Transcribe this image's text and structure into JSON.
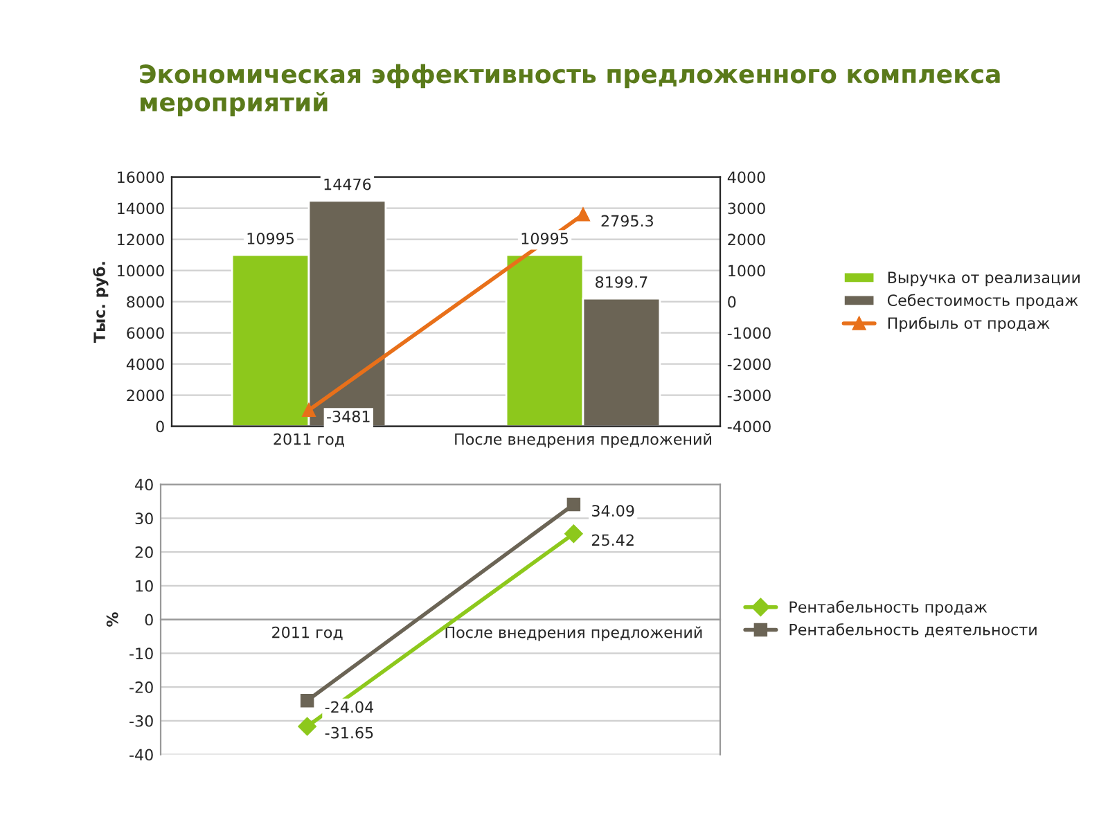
{
  "chart_data": [
    {
      "type": "bar",
      "title": "Экономическая эффективность предложенного комплекса мероприятий",
      "ylabel": "Тыс. руб.",
      "categories": [
        "2011 год",
        "После внедрения предложений"
      ],
      "series": [
        {
          "name": "Выручка от реализации",
          "color": "#8dc81c",
          "values": [
            10995,
            10995
          ]
        },
        {
          "name": "Себестоимость продаж",
          "color": "#6b6455",
          "values": [
            14476,
            8199.7
          ]
        },
        {
          "name": "Прибыль от продаж",
          "color": "#e8701a",
          "type": "line",
          "axis": "y2",
          "marker": "triangle",
          "values": [
            -3481,
            2795.3
          ]
        }
      ],
      "ylim": [
        0,
        16000
      ],
      "yticks": [
        0,
        2000,
        4000,
        6000,
        8000,
        10000,
        12000,
        14000,
        16000
      ],
      "y2lim": [
        -4000,
        4000
      ],
      "y2ticks": [
        -4000,
        -3000,
        -2000,
        -1000,
        0,
        1000,
        2000,
        3000,
        4000
      ],
      "grid": "y",
      "legend": "right",
      "data_labels": true
    },
    {
      "type": "line",
      "ylabel": "%",
      "categories": [
        "2011 год",
        "После внедрения предложений"
      ],
      "series": [
        {
          "name": "Рентабельность продаж",
          "color": "#8dc81c",
          "marker": "diamond",
          "values": [
            -31.65,
            25.42
          ]
        },
        {
          "name": "Рентабельность деятельности",
          "color": "#6b6455",
          "marker": "square",
          "values": [
            -24.04,
            34.09
          ]
        }
      ],
      "ylim": [
        -40,
        40
      ],
      "yticks": [
        -40,
        -30,
        -20,
        -10,
        0,
        10,
        20,
        30,
        40
      ],
      "grid": "y",
      "legend": "right",
      "data_labels": true
    }
  ]
}
